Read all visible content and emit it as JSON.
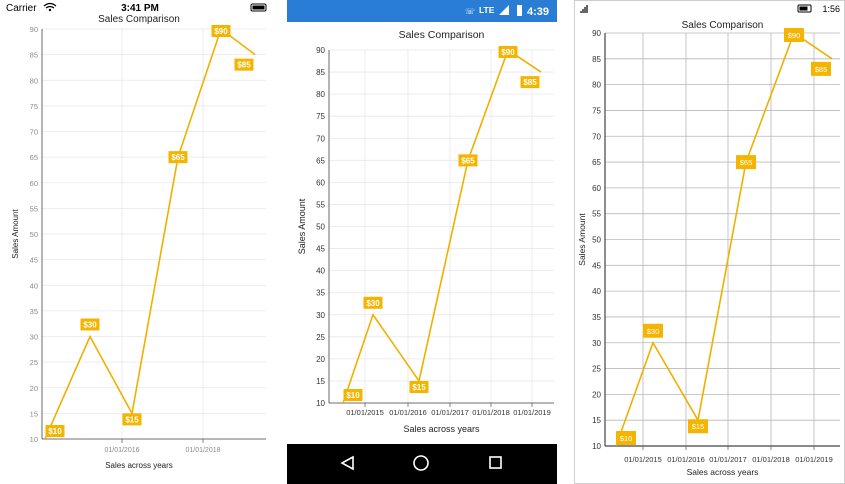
{
  "screens": [
    {
      "status": {
        "carrier": "Carrier",
        "time": "3:41 PM"
      },
      "title": "Sales Comparison",
      "xlabel": "Sales across years",
      "ylabel": "Sales Amount",
      "x_ticks": [
        "01/01/2016",
        "01/01/2018"
      ],
      "y_ticks": [
        "10",
        "15",
        "20",
        "25",
        "30",
        "35",
        "40",
        "45",
        "50",
        "55",
        "60",
        "65",
        "70",
        "75",
        "80",
        "85",
        "90"
      ]
    },
    {
      "status": {
        "network": "LTE",
        "time": "4:39"
      },
      "title": "Sales Comparison",
      "xlabel": "Sales across years",
      "ylabel": "Sales Amount",
      "x_ticks": [
        "01/01/2015",
        "01/01/2016",
        "01/01/2017",
        "01/01/2018",
        "01/01/2019"
      ],
      "y_ticks": [
        "10",
        "15",
        "20",
        "25",
        "30",
        "35",
        "40",
        "45",
        "50",
        "55",
        "60",
        "65",
        "70",
        "75",
        "80",
        "85",
        "90"
      ]
    },
    {
      "status": {
        "time": "1:56"
      },
      "title": "Sales Comparison",
      "xlabel": "Sales across years",
      "ylabel": "Sales Amount",
      "x_ticks": [
        "01/01/2015",
        "01/01/2016",
        "01/01/2017",
        "01/01/2018",
        "01/01/2019"
      ],
      "y_ticks": [
        "10",
        "15",
        "20",
        "25",
        "30",
        "35",
        "40",
        "45",
        "50",
        "55",
        "60",
        "65",
        "70",
        "75",
        "80",
        "85",
        "90"
      ]
    }
  ],
  "chart_data": {
    "type": "line",
    "title": "Sales Comparison",
    "xlabel": "Sales across years",
    "ylabel": "Sales Amount",
    "series": [
      {
        "x": [
          "2014-06-01",
          "2015-06-01",
          "2016-06-01",
          "2017-06-01",
          "2018-06-01",
          "2019-06-01"
        ],
        "values": [
          10,
          30,
          15,
          65,
          90,
          85
        ],
        "labels": [
          "$10",
          "$30",
          "$15",
          "$65",
          "$90",
          "$85"
        ]
      }
    ],
    "ylim": [
      10,
      90
    ],
    "grid": true,
    "color": "#f0b000",
    "label_fill": "#f5b400"
  }
}
